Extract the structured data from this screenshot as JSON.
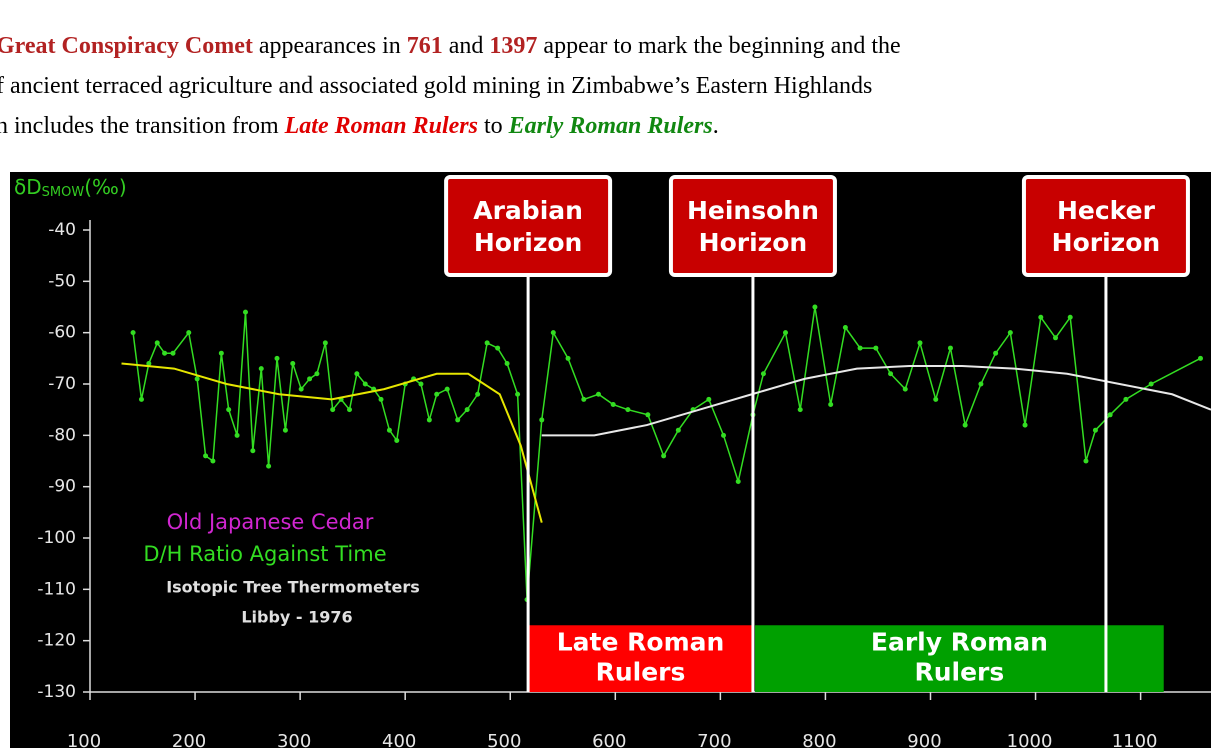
{
  "intro": {
    "lines": [
      [
        {
          "text": "Great Conspiracy Comet",
          "style": "bold-red"
        },
        {
          "text": " appearances in ",
          "style": "plain"
        },
        {
          "text": "761",
          "style": "bold-red"
        },
        {
          "text": " and ",
          "style": "plain"
        },
        {
          "text": "1397",
          "style": "bold-red"
        },
        {
          "text": " appear to mark the beginning and the",
          "style": "plain"
        }
      ],
      [
        {
          "text": "f ancient terraced agriculture and associated gold mining in Zimbabwe’s Eastern Highlands",
          "style": "plain"
        }
      ],
      [
        {
          "text": "n includes the transition from ",
          "style": "plain"
        },
        {
          "text": "Late Roman Rulers",
          "style": "italic-red"
        },
        {
          "text": " to ",
          "style": "plain"
        },
        {
          "text": "Early Roman Rulers",
          "style": "italic-green"
        },
        {
          "text": ".",
          "style": "plain"
        }
      ]
    ]
  },
  "chart_data": {
    "type": "line",
    "ylabel": {
      "main": "δD",
      "sub": "SMOW",
      "unit": "(‰)"
    },
    "xlim": [
      100,
      1167
    ],
    "ylim": [
      -130,
      -40
    ],
    "xticks": [
      100,
      200,
      300,
      400,
      500,
      600,
      700,
      800,
      900,
      1000,
      1100
    ],
    "yticks": [
      -40,
      -50,
      -60,
      -70,
      -80,
      -90,
      -100,
      -110,
      -120,
      -130
    ],
    "background": "#000000",
    "series": [
      {
        "color": "#33dd22",
        "markers": true,
        "x": [
          141,
          149,
          156,
          164,
          171,
          179,
          194,
          202,
          210,
          217,
          225,
          232,
          240,
          248,
          255,
          263,
          270,
          278,
          286,
          293,
          301,
          309,
          316,
          324,
          331,
          339,
          347,
          354,
          362,
          370,
          377,
          385,
          392,
          400,
          408,
          415,
          423,
          430,
          440,
          450,
          459,
          469,
          478,
          488,
          497,
          507,
          516,
          530,
          541,
          555,
          570,
          584,
          598,
          612,
          631,
          646,
          660,
          674,
          689,
          703,
          717,
          731,
          741,
          762,
          776,
          790,
          805,
          819,
          833,
          848,
          862,
          876,
          890,
          905,
          919,
          933,
          948,
          962,
          976,
          990,
          1005,
          1019,
          1033,
          1048,
          1057,
          1071,
          1086,
          1110,
          1157
        ],
        "values": [
          -60,
          -73,
          -66,
          -62,
          -64,
          -64,
          -60,
          -69,
          -84,
          -85,
          -64,
          -75,
          -80,
          -56,
          -83,
          -67,
          -86,
          -65,
          -79,
          -66,
          -71,
          -69,
          -68,
          -62,
          -75,
          -73,
          -75,
          -68,
          -70,
          -71,
          -73,
          -79,
          -81,
          -70,
          -69,
          -70,
          -77,
          -72,
          -71,
          -77,
          -75,
          -72,
          -62,
          -63,
          -66,
          -72,
          -112,
          -77,
          -60,
          -65,
          -73,
          -72,
          -74,
          -75,
          -76,
          -84,
          -79,
          -75,
          -73,
          -80,
          -89,
          -76,
          -68,
          -60,
          -75,
          -55,
          -74,
          -59,
          -63,
          -63,
          -68,
          -71,
          -62,
          -73,
          -63,
          -78,
          -70,
          -64,
          -60,
          -78,
          -57,
          -61,
          -57,
          -85,
          -79,
          -76,
          -73,
          -70,
          -65
        ]
      },
      {
        "color": "#e6e600",
        "markers": false,
        "x": [
          130,
          180,
          230,
          280,
          330,
          380,
          430,
          460,
          490,
          510,
          530
        ],
        "values": [
          -66,
          -67,
          -70,
          -72,
          -73,
          -71,
          -68,
          -68,
          -72,
          -82,
          -97
        ]
      },
      {
        "color": "#e8e8e8",
        "markers": false,
        "x": [
          530,
          580,
          630,
          680,
          730,
          780,
          830,
          880,
          930,
          980,
          1030,
          1080,
          1130,
          1167
        ],
        "values": [
          -80,
          -80,
          -78,
          -75,
          -72,
          -69,
          -67,
          -66.5,
          -66.5,
          -67,
          -68,
          -70,
          -72,
          -75
        ]
      }
    ],
    "annotations": [
      {
        "text": "Old Japanese Cedar",
        "color": "#d026d0"
      },
      {
        "text": "D/H Ratio Against Time",
        "color": "#33dd22"
      },
      {
        "text": "Isotopic Tree Thermometers",
        "color": "#e0e0e0"
      },
      {
        "text": "Libby - 1976",
        "color": "#e0e0e0"
      }
    ],
    "horizons": [
      {
        "lines": [
          "Arabian",
          "Horizon"
        ],
        "x": 517
      },
      {
        "lines": [
          "Heinsohn",
          "Horizon"
        ],
        "x": 731
      },
      {
        "lines": [
          "Hecker",
          "Horizon"
        ],
        "x": 1067
      }
    ],
    "regions": [
      {
        "lines": [
          "Late Roman",
          "Rulers"
        ],
        "x": [
          517,
          731
        ],
        "y": [
          -130,
          -117
        ],
        "color": "#ff0000"
      },
      {
        "lines": [
          "Early Roman",
          "Rulers"
        ],
        "x": [
          733,
          1122
        ],
        "y": [
          -130,
          -117
        ],
        "color": "#00a000"
      }
    ]
  }
}
